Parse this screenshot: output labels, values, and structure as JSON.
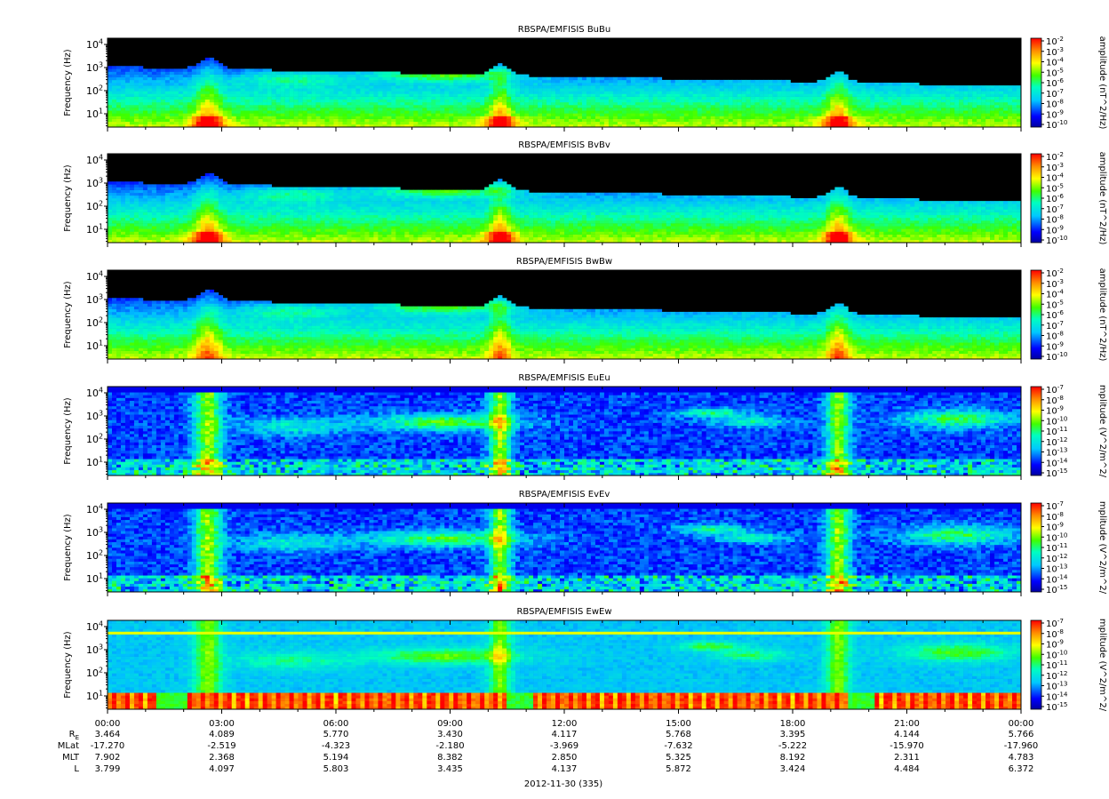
{
  "chart_data": {
    "type": "heatmap",
    "date_label": "2012-11-30 (335)",
    "x_ticks": [
      "00:00",
      "03:00",
      "06:00",
      "09:00",
      "12:00",
      "15:00",
      "18:00",
      "21:00",
      "00:00"
    ],
    "y_ticks": [
      "10^4",
      "10^3",
      "10^2",
      "10^1"
    ],
    "ylabel": "Frequency (Hz)",
    "ephemeris": [
      {
        "label": "R_E",
        "values": [
          "3.464",
          "4.089",
          "5.770",
          "3.430",
          "4.117",
          "5.768",
          "3.395",
          "4.144",
          "5.766"
        ]
      },
      {
        "label": "MLat",
        "values": [
          "-17.270",
          "-2.519",
          "-4.323",
          "-2.180",
          "-3.969",
          "-7.632",
          "-5.222",
          "-15.970",
          "-17.960"
        ]
      },
      {
        "label": "MLT",
        "values": [
          "7.902",
          "2.368",
          "5.194",
          "8.382",
          "2.850",
          "5.325",
          "8.192",
          "2.311",
          "4.783"
        ]
      },
      {
        "label": "L",
        "values": [
          "3.799",
          "4.097",
          "5.803",
          "3.435",
          "4.137",
          "5.872",
          "3.424",
          "4.484",
          "6.372"
        ]
      }
    ],
    "panels": [
      {
        "title": "RBSPA/EMFISIS  BuBu",
        "colorbar_label": "amplitude (nT^2/Hz)",
        "cbar_ticks": [
          "10^-2",
          "10^-3",
          "10^-4",
          "10^-5",
          "10^-6",
          "10^-7",
          "10^-8",
          "10^-9",
          "10^-10"
        ],
        "kind": "B"
      },
      {
        "title": "RBSPA/EMFISIS  BvBv",
        "colorbar_label": "amplitude (nT^2/Hz)",
        "cbar_ticks": [
          "10^-2",
          "10^-3",
          "10^-4",
          "10^-5",
          "10^-6",
          "10^-7",
          "10^-8",
          "10^-9",
          "10^-10"
        ],
        "kind": "B"
      },
      {
        "title": "RBSPA/EMFISIS  BwBw",
        "colorbar_label": "amplitude (nT^2/Hz)",
        "cbar_ticks": [
          "10^-2",
          "10^-3",
          "10^-4",
          "10^-5",
          "10^-6",
          "10^-7",
          "10^-8",
          "10^-9",
          "10^-10"
        ],
        "kind": "Bw"
      },
      {
        "title": "RBSPA/EMFISIS  EuEu",
        "colorbar_label": "mplitude (V^2/m^2/",
        "cbar_ticks": [
          "10^-7",
          "10^-8",
          "10^-9",
          "10^-10",
          "10^-11",
          "10^-12",
          "10^-13",
          "10^-14",
          "10^-15"
        ],
        "kind": "E"
      },
      {
        "title": "RBSPA/EMFISIS  EvEv",
        "colorbar_label": "mplitude (V^2/m^2/",
        "cbar_ticks": [
          "10^-7",
          "10^-8",
          "10^-9",
          "10^-10",
          "10^-11",
          "10^-12",
          "10^-13",
          "10^-14",
          "10^-15"
        ],
        "kind": "E"
      },
      {
        "title": "RBSPA/EMFISIS  EwEw",
        "colorbar_label": "mplitude (V^2/m^2/",
        "cbar_ticks": [
          "10^-7",
          "10^-8",
          "10^-9",
          "10^-10",
          "10^-11",
          "10^-12",
          "10^-13",
          "10^-14",
          "10^-15"
        ],
        "kind": "Ew"
      }
    ]
  }
}
